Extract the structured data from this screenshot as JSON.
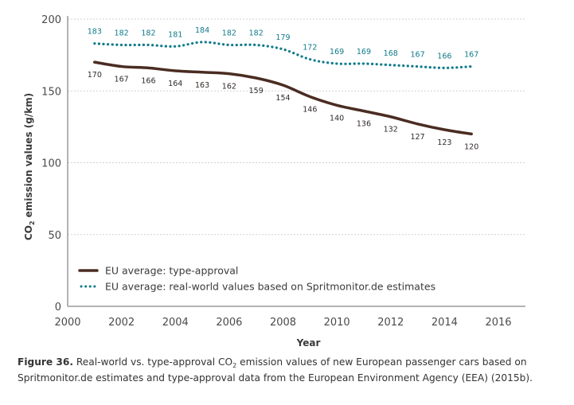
{
  "chart_data": {
    "type": "line",
    "title": "",
    "xlabel": "Year",
    "ylabel_prefix": "CO",
    "ylabel_sub": "2",
    "ylabel_suffix": " emission values (g/km)",
    "xlim": [
      2000,
      2016
    ],
    "ylim": [
      0,
      200
    ],
    "xticks": [
      2000,
      2002,
      2004,
      2006,
      2008,
      2010,
      2012,
      2014,
      2016
    ],
    "yticks": [
      0,
      50,
      100,
      150,
      200
    ],
    "grid": "horizontal-dotted",
    "legend_position": "bottom-left",
    "x": [
      2001,
      2002,
      2003,
      2004,
      2005,
      2006,
      2007,
      2008,
      2009,
      2010,
      2011,
      2012,
      2013,
      2014,
      2015
    ],
    "series": [
      {
        "name": "EU average: type-approval",
        "style": "solid",
        "color": "#4a2c22",
        "label_position": "below",
        "values": [
          170,
          167,
          166,
          164,
          163,
          162,
          159,
          154,
          146,
          140,
          136,
          132,
          127,
          123,
          120
        ]
      },
      {
        "name": "EU average: real-world values based on Spritmonitor.de estimates",
        "style": "dotted",
        "color": "#0f7a8a",
        "label_position": "above",
        "values": [
          183,
          182,
          182,
          181,
          184,
          182,
          182,
          179,
          172,
          169,
          169,
          168,
          167,
          166,
          167
        ]
      }
    ]
  },
  "caption": {
    "figure_label": "Figure 36.",
    "text_part1": " Real-world vs. type-approval CO",
    "sub": "2",
    "text_part2": " emission values of new European passenger cars based on Spritmonitor.de estimates and type-approval data from the European Environment Agency (EEA) (2015b)."
  },
  "colors": {
    "axis": "#9a9a9a",
    "grid": "#d0d0d0",
    "type_approval": "#4a2c22",
    "real_world": "#0f7a8a"
  }
}
